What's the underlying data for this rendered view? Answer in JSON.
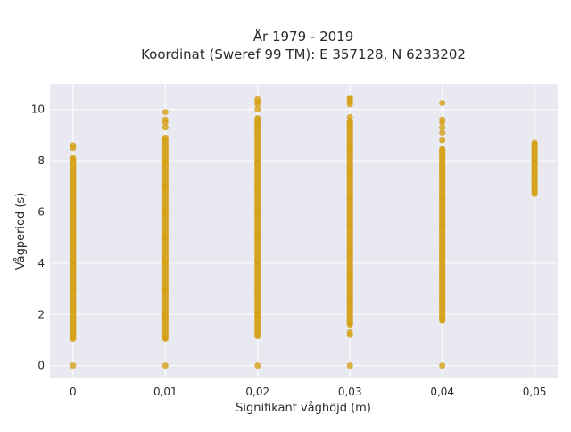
{
  "chart_data": {
    "type": "scatter",
    "title_line1": "År 1979 - 2019",
    "title_line2": "Koordinat (Sweref 99 TM): E 357128, N 6233202",
    "xlabel": "Signifikant våghöjd (m)",
    "ylabel": "Vågperiod (s)",
    "xlim": [
      -0.0025,
      0.0525
    ],
    "ylim": [
      -0.5,
      11
    ],
    "x_ticks": [
      {
        "value": 0,
        "label": "0"
      },
      {
        "value": 0.01,
        "label": "0,01"
      },
      {
        "value": 0.02,
        "label": "0,02"
      },
      {
        "value": 0.03,
        "label": "0,03"
      },
      {
        "value": 0.04,
        "label": "0,04"
      },
      {
        "value": 0.05,
        "label": "0,05"
      }
    ],
    "y_ticks": [
      {
        "value": 0,
        "label": "0"
      },
      {
        "value": 2,
        "label": "2"
      },
      {
        "value": 4,
        "label": "4"
      },
      {
        "value": 6,
        "label": "6"
      },
      {
        "value": 8,
        "label": "8"
      },
      {
        "value": 10,
        "label": "10"
      }
    ],
    "grid": true,
    "colors": {
      "marker": "#d4a017",
      "plot_bg": "#e9e9f1",
      "grid": "#ffffff"
    },
    "series": [
      {
        "points": [
          {
            "x": 0,
            "y": 0
          },
          {
            "x": 0,
            "y": 1.05
          },
          {
            "x": 0,
            "y": 1.5
          },
          {
            "x": 0,
            "y": 2.2
          },
          {
            "x": 0,
            "y": 3.0
          },
          {
            "x": 0,
            "y": 4.0
          },
          {
            "x": 0,
            "y": 5.0
          },
          {
            "x": 0,
            "y": 6.0
          },
          {
            "x": 0,
            "y": 7.0
          },
          {
            "x": 0,
            "y": 8.1
          },
          {
            "x": 0,
            "y": 8.5
          },
          {
            "x": 0,
            "y": 8.6
          },
          {
            "x": 0.01,
            "y": 0
          },
          {
            "x": 0.01,
            "y": 1.05
          },
          {
            "x": 0.01,
            "y": 2.0
          },
          {
            "x": 0.01,
            "y": 3.0
          },
          {
            "x": 0.01,
            "y": 4.0
          },
          {
            "x": 0.01,
            "y": 5.0
          },
          {
            "x": 0.01,
            "y": 6.0
          },
          {
            "x": 0.01,
            "y": 7.0
          },
          {
            "x": 0.01,
            "y": 8.0
          },
          {
            "x": 0.01,
            "y": 8.9
          },
          {
            "x": 0.01,
            "y": 9.3
          },
          {
            "x": 0.01,
            "y": 9.5
          },
          {
            "x": 0.01,
            "y": 9.6
          },
          {
            "x": 0.01,
            "y": 9.9
          },
          {
            "x": 0.02,
            "y": 0
          },
          {
            "x": 0.02,
            "y": 1.15
          },
          {
            "x": 0.02,
            "y": 2.0
          },
          {
            "x": 0.02,
            "y": 3.0
          },
          {
            "x": 0.02,
            "y": 4.0
          },
          {
            "x": 0.02,
            "y": 5.0
          },
          {
            "x": 0.02,
            "y": 6.0
          },
          {
            "x": 0.02,
            "y": 7.0
          },
          {
            "x": 0.02,
            "y": 8.0
          },
          {
            "x": 0.02,
            "y": 9.0
          },
          {
            "x": 0.02,
            "y": 9.5
          },
          {
            "x": 0.02,
            "y": 10.0
          },
          {
            "x": 0.02,
            "y": 10.2
          },
          {
            "x": 0.02,
            "y": 10.3
          },
          {
            "x": 0.02,
            "y": 10.4
          },
          {
            "x": 0.03,
            "y": 0
          },
          {
            "x": 0.03,
            "y": 1.2
          },
          {
            "x": 0.03,
            "y": 1.3
          },
          {
            "x": 0.03,
            "y": 1.6
          },
          {
            "x": 0.03,
            "y": 2.5
          },
          {
            "x": 0.03,
            "y": 3.5
          },
          {
            "x": 0.03,
            "y": 4.5
          },
          {
            "x": 0.03,
            "y": 5.5
          },
          {
            "x": 0.03,
            "y": 6.5
          },
          {
            "x": 0.03,
            "y": 7.5
          },
          {
            "x": 0.03,
            "y": 8.5
          },
          {
            "x": 0.03,
            "y": 9.4
          },
          {
            "x": 0.03,
            "y": 9.7
          },
          {
            "x": 0.03,
            "y": 10.2
          },
          {
            "x": 0.03,
            "y": 10.3
          },
          {
            "x": 0.03,
            "y": 10.4
          },
          {
            "x": 0.03,
            "y": 10.45
          },
          {
            "x": 0.04,
            "y": 0
          },
          {
            "x": 0.04,
            "y": 1.75
          },
          {
            "x": 0.04,
            "y": 2.5
          },
          {
            "x": 0.04,
            "y": 3.5
          },
          {
            "x": 0.04,
            "y": 4.5
          },
          {
            "x": 0.04,
            "y": 5.5
          },
          {
            "x": 0.04,
            "y": 6.5
          },
          {
            "x": 0.04,
            "y": 7.5
          },
          {
            "x": 0.04,
            "y": 8.4
          },
          {
            "x": 0.04,
            "y": 8.8
          },
          {
            "x": 0.04,
            "y": 9.1
          },
          {
            "x": 0.04,
            "y": 9.3
          },
          {
            "x": 0.04,
            "y": 9.5
          },
          {
            "x": 0.04,
            "y": 9.6
          },
          {
            "x": 0.04,
            "y": 10.25
          },
          {
            "x": 0.05,
            "y": 6.7
          },
          {
            "x": 0.05,
            "y": 7.0
          },
          {
            "x": 0.05,
            "y": 7.5
          },
          {
            "x": 0.05,
            "y": 8.0
          },
          {
            "x": 0.05,
            "y": 8.4
          },
          {
            "x": 0.05,
            "y": 8.7
          }
        ],
        "dense_ranges": [
          {
            "x": 0,
            "y_from": 1.05,
            "y_to": 8.1
          },
          {
            "x": 0.01,
            "y_from": 1.05,
            "y_to": 8.9
          },
          {
            "x": 0.02,
            "y_from": 1.15,
            "y_to": 9.7
          },
          {
            "x": 0.03,
            "y_from": 1.6,
            "y_to": 9.6
          },
          {
            "x": 0.04,
            "y_from": 1.75,
            "y_to": 8.5
          },
          {
            "x": 0.05,
            "y_from": 6.7,
            "y_to": 8.7
          }
        ]
      }
    ]
  }
}
